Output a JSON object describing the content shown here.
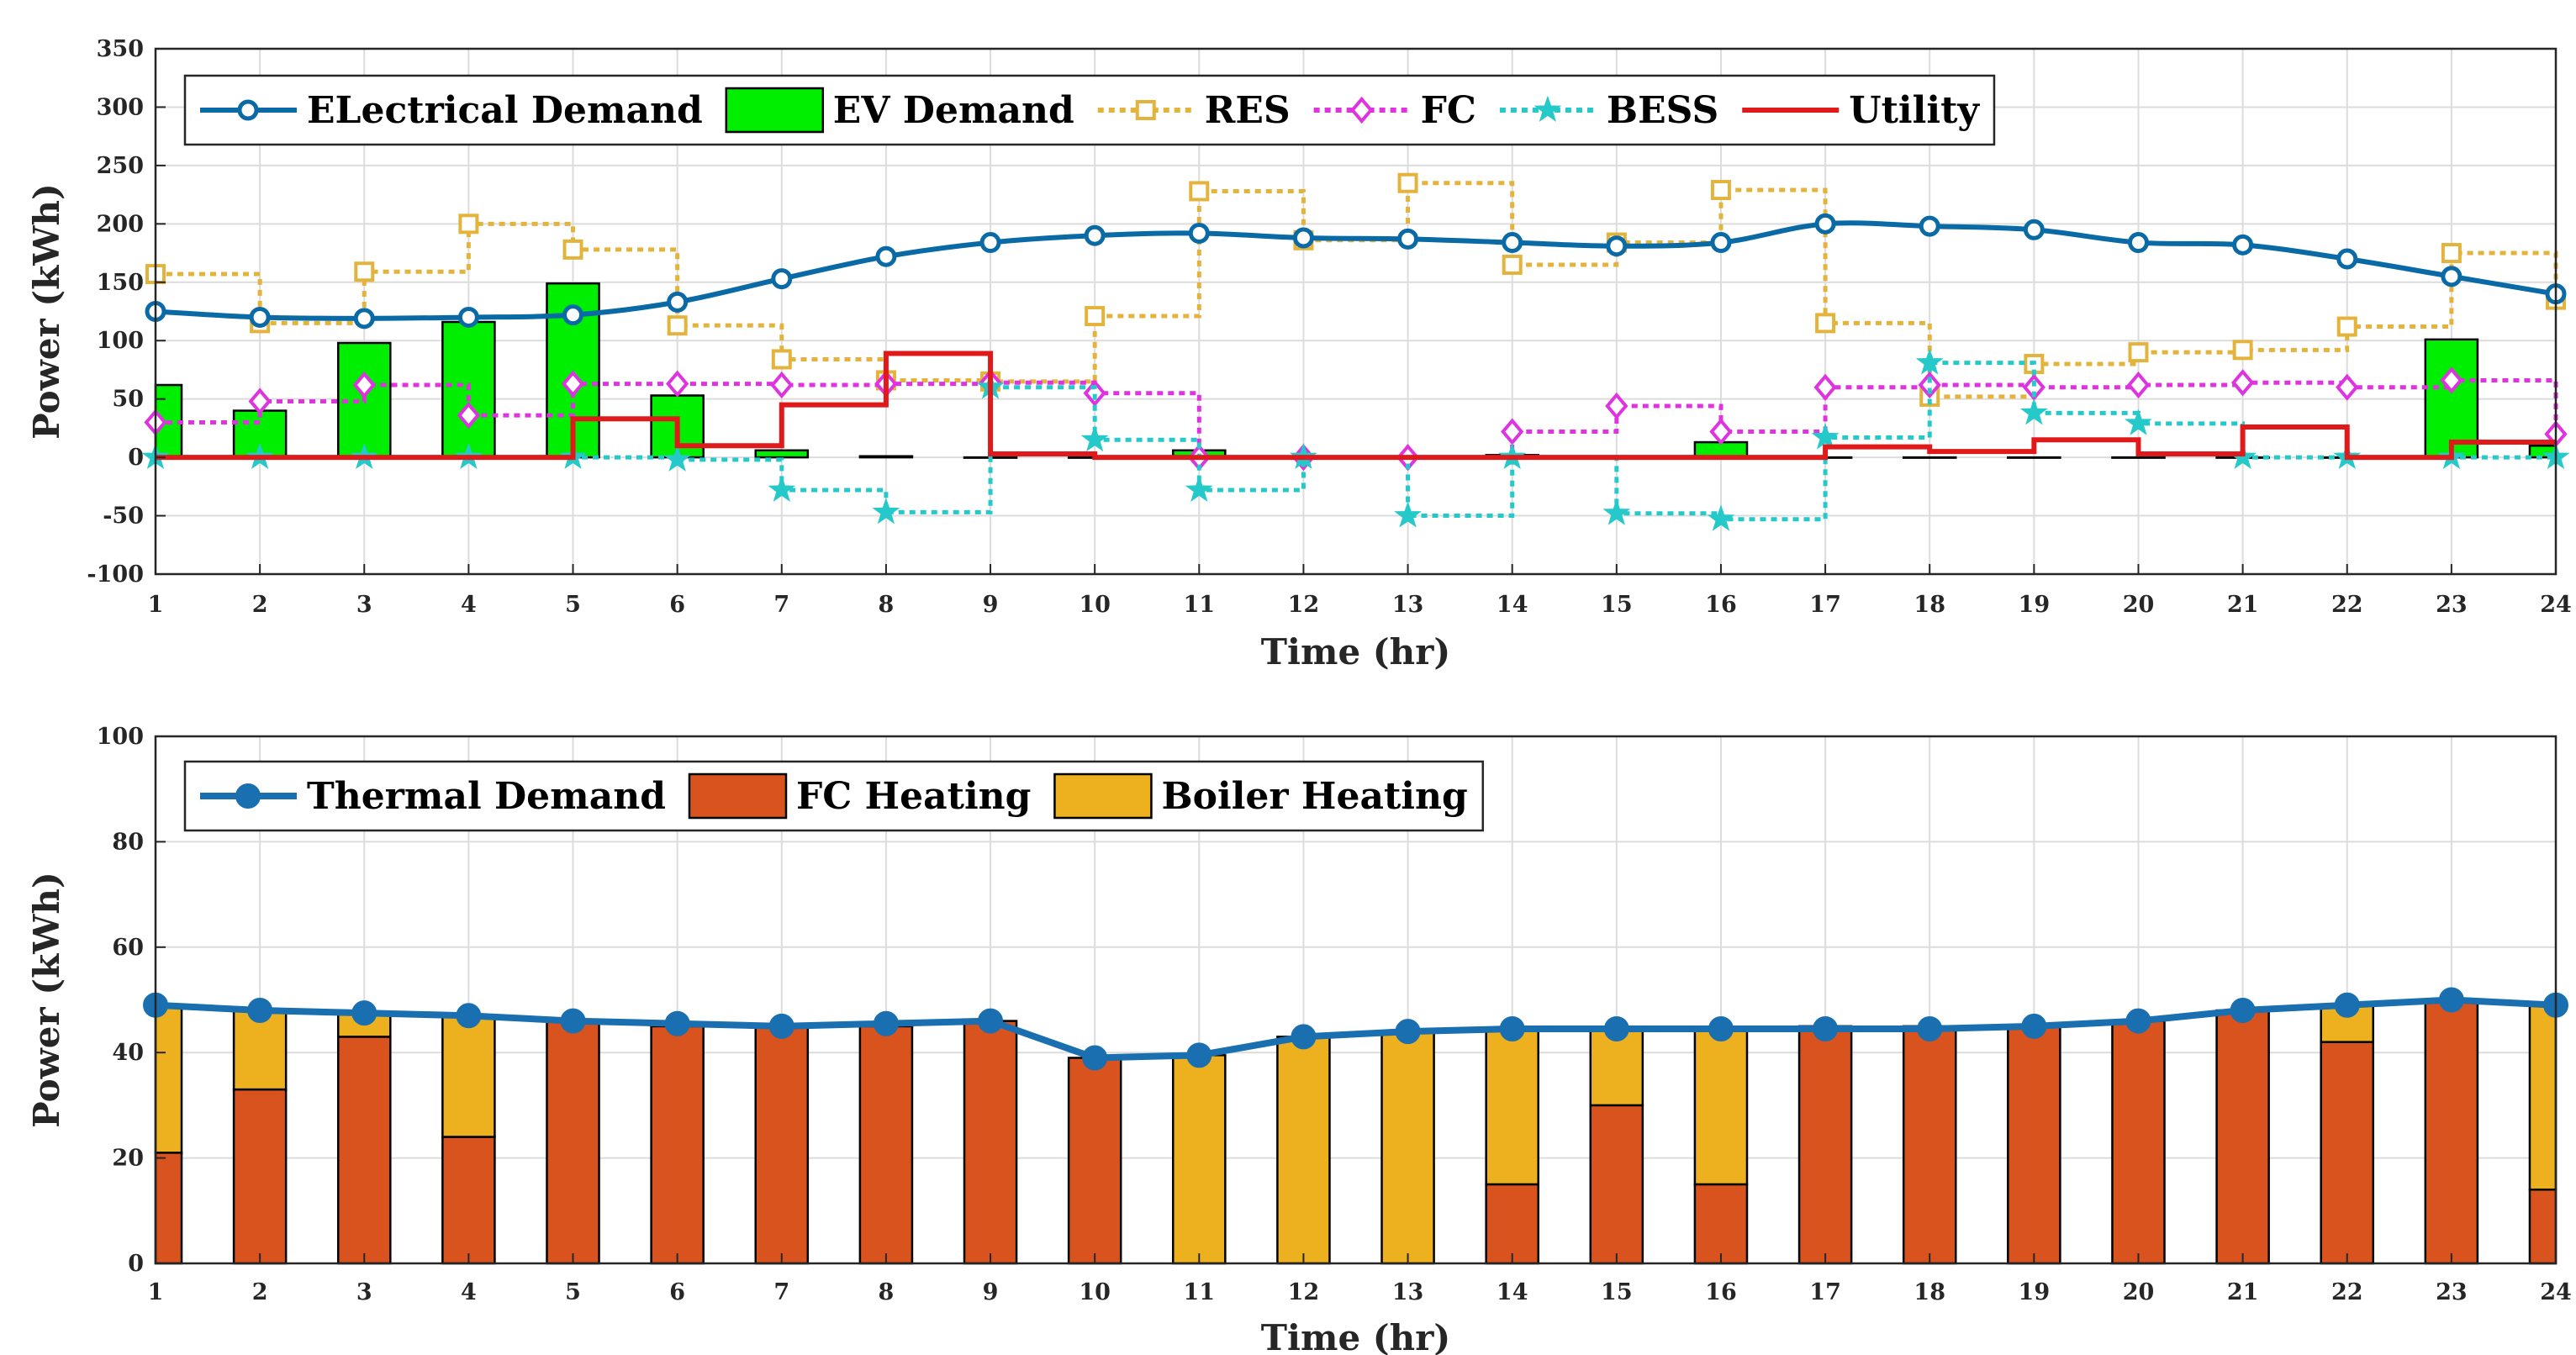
{
  "chart_data": [
    {
      "type": "line",
      "title": "",
      "xlabel": "Time (hr)",
      "ylabel": "Power (kWh)",
      "x": [
        1,
        2,
        3,
        4,
        5,
        6,
        7,
        8,
        9,
        10,
        11,
        12,
        13,
        14,
        15,
        16,
        17,
        18,
        19,
        20,
        21,
        22,
        23,
        24
      ],
      "xlim": [
        1,
        24
      ],
      "ylim": [
        -100,
        350
      ],
      "yticks": [
        -100,
        -50,
        0,
        50,
        100,
        150,
        200,
        250,
        300,
        350
      ],
      "grid": true,
      "legend": "top-left",
      "series": [
        {
          "name": "ELectrical Demand",
          "style": "line-circle",
          "color": "#0a6aa6",
          "values": [
            125,
            120,
            119,
            120,
            122,
            133,
            153,
            172,
            184,
            190,
            192,
            188,
            187,
            184,
            181,
            184,
            200,
            198,
            195,
            184,
            182,
            170,
            155,
            140
          ]
        },
        {
          "name": "EV Demand",
          "style": "bar",
          "color": "#00ee00",
          "values": [
            62,
            40,
            98,
            116,
            149,
            53,
            6,
            1,
            0,
            0,
            6,
            0,
            0,
            2,
            0,
            13,
            0,
            0,
            0,
            0,
            0,
            0,
            101,
            10
          ]
        },
        {
          "name": "RES",
          "style": "stairs-square-dotted",
          "color": "#e3b33c",
          "values": [
            157,
            115,
            159,
            200,
            178,
            113,
            84,
            66,
            65,
            121,
            228,
            186,
            235,
            165,
            184,
            229,
            115,
            52,
            80,
            90,
            92,
            112,
            175,
            135
          ]
        },
        {
          "name": "FC",
          "style": "stairs-diamond-dotted",
          "color": "#e033e0",
          "values": [
            30,
            48,
            62,
            36,
            63,
            63,
            62,
            63,
            64,
            55,
            0,
            0,
            0,
            22,
            44,
            22,
            60,
            62,
            60,
            62,
            64,
            60,
            66,
            20
          ]
        },
        {
          "name": "BESS",
          "style": "stairs-star-dotted",
          "color": "#25c9c9",
          "values": [
            0,
            0,
            0,
            0,
            0,
            -2,
            -28,
            -47,
            60,
            15,
            -28,
            0,
            -50,
            0,
            -48,
            -53,
            17,
            81,
            38,
            29,
            0,
            0,
            0,
            0
          ]
        },
        {
          "name": "Utility",
          "style": "stairs",
          "color": "#e01a1a",
          "values": [
            0,
            0,
            0,
            0,
            33,
            10,
            45,
            89,
            3,
            0,
            0,
            0,
            0,
            0,
            0,
            0,
            9,
            5,
            15,
            3,
            26,
            0,
            13,
            13
          ]
        }
      ]
    },
    {
      "type": "bar",
      "title": "",
      "xlabel": "Time (hr)",
      "ylabel": "Power (kWh)",
      "x": [
        1,
        2,
        3,
        4,
        5,
        6,
        7,
        8,
        9,
        10,
        11,
        12,
        13,
        14,
        15,
        16,
        17,
        18,
        19,
        20,
        21,
        22,
        23,
        24
      ],
      "xlim": [
        1,
        24
      ],
      "ylim": [
        0,
        100
      ],
      "yticks": [
        0,
        20,
        40,
        60,
        80,
        100
      ],
      "grid": true,
      "legend": "top-left",
      "stacked": true,
      "series": [
        {
          "name": "Thermal Demand",
          "style": "line-circle",
          "color": "#1a6fb0",
          "values": [
            49,
            48,
            47.5,
            47,
            46,
            45.5,
            45,
            45.5,
            46,
            39,
            39.5,
            43,
            44,
            44.5,
            44.5,
            44.5,
            44.5,
            44.5,
            45,
            46,
            48,
            49,
            50,
            49
          ]
        },
        {
          "name": "FC Heating",
          "style": "bar",
          "color": "#d8531e",
          "values": [
            21,
            33,
            43,
            24,
            46,
            45,
            45,
            45,
            46,
            39,
            0,
            0,
            0,
            15,
            30,
            15,
            45,
            45,
            45,
            46,
            48,
            42,
            50,
            14
          ]
        },
        {
          "name": "Boiler Heating",
          "style": "bar",
          "color": "#edb120",
          "values": [
            28,
            15,
            4.5,
            23,
            0,
            0.5,
            0,
            0.5,
            0,
            0,
            39.5,
            43,
            44,
            29.5,
            14.5,
            29.5,
            0,
            0,
            0,
            0,
            0,
            7,
            0,
            35
          ]
        }
      ]
    }
  ]
}
